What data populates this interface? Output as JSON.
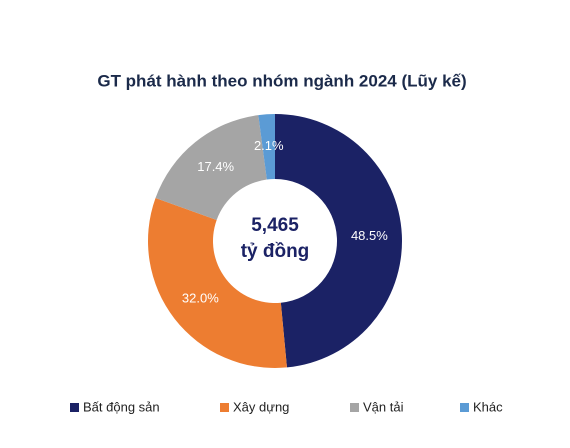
{
  "chart_data": {
    "type": "donut",
    "title": "GT phát hành theo nhóm ngành 2024 (Lũy kế)",
    "categories": [
      "Bất động sản",
      "Xây dựng",
      "Vận tải",
      "Khác"
    ],
    "values": [
      48.5,
      32.0,
      17.4,
      2.1
    ],
    "value_labels": [
      "48.5%",
      "32.0%",
      "17.4%",
      "2.1%"
    ],
    "colors": [
      "#1b2265",
      "#ed7d31",
      "#a5a5a5",
      "#5b9bd5"
    ],
    "center_label": [
      "5,465",
      "tỷ đồng"
    ],
    "legend": "bottom"
  }
}
